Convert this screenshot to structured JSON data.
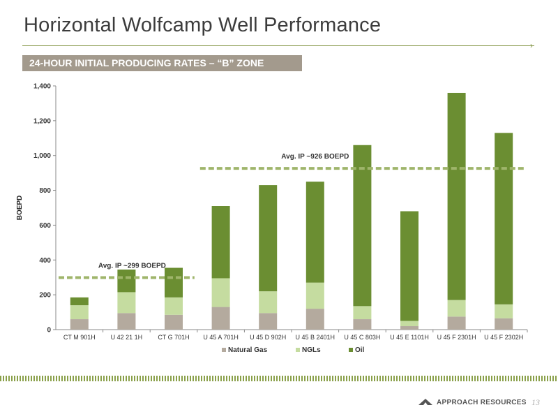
{
  "title": "Horizontal Wolfcamp Well Performance",
  "subtitle": "24-HOUR INITIAL PRODUCING RATES – “B” ZONE",
  "footer": {
    "company": "APPROACH RESOURCES",
    "page_number": "13"
  },
  "colors": {
    "natural_gas": "#b4aa9e",
    "ngls": "#c5dca0",
    "oil": "#6b8e32",
    "avg_line": "#9fb56b",
    "accent": "#8a9a4e"
  },
  "chart_data": {
    "type": "bar",
    "stacked": true,
    "categories": [
      "CT M 901H",
      "U 42 21 1H",
      "CT G 701H",
      "U 45 A 701H",
      "U 45 D 902H",
      "U 45 B 2401H",
      "U 45 C 803H",
      "U 45 E 1101H",
      "U 45 F 2301H",
      "U 45 F 2302H"
    ],
    "series": [
      {
        "name": "Natural Gas",
        "values": [
          60,
          95,
          85,
          130,
          95,
          120,
          60,
          20,
          75,
          65
        ]
      },
      {
        "name": "NGLs",
        "values": [
          80,
          120,
          100,
          165,
          125,
          150,
          75,
          30,
          95,
          80
        ]
      },
      {
        "name": "Oil",
        "values": [
          45,
          130,
          170,
          415,
          610,
          580,
          925,
          630,
          1190,
          985
        ]
      }
    ],
    "ylabel": "BOEPD",
    "xlabel": "",
    "ylim": [
      0,
      1400
    ],
    "yticks": [
      0,
      200,
      400,
      600,
      800,
      1000,
      1200,
      1400
    ],
    "ytick_labels": [
      "0",
      "200",
      "400",
      "600",
      "800",
      "1,000",
      "1,200",
      "1,400"
    ],
    "grid": false,
    "legend_position": "bottom",
    "annotations": [
      {
        "text": "Avg. IP ~299 BOEPD",
        "value": 299,
        "from_category": 0,
        "to_category": 2
      },
      {
        "text": "Avg. IP ~926 BOEPD",
        "value": 926,
        "from_category": 3,
        "to_category": 9
      }
    ]
  }
}
